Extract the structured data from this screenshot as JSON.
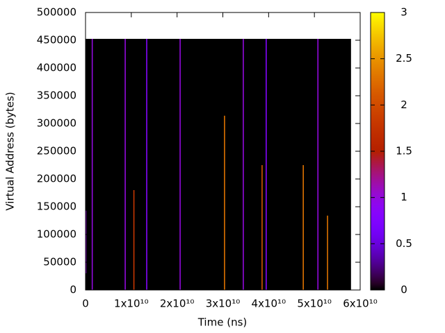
{
  "chart_data": {
    "type": "heatmap",
    "x_label": "Time (ns)",
    "y_label": "Virtual Address (bytes)",
    "xlim": [
      0,
      60000000000
    ],
    "xticks": [
      0,
      {
        "value": 10000000000,
        "label": "1x10¹⁰"
      },
      {
        "value": 20000000000,
        "label": "2x10¹⁰"
      },
      {
        "value": 30000000000,
        "label": "3x10¹⁰"
      },
      {
        "value": 40000000000,
        "label": "4x10¹⁰"
      },
      {
        "value": 50000000000,
        "label": "5x10¹⁰"
      },
      {
        "value": 60000000000,
        "label": "6x10¹⁰"
      }
    ],
    "ylim": [
      0,
      500000
    ],
    "yticks": [
      0,
      50000,
      100000,
      150000,
      200000,
      250000,
      300000,
      350000,
      400000,
      450000,
      500000
    ],
    "background": {
      "x": [
        0,
        58000000000
      ],
      "y": [
        0,
        452500
      ],
      "value": 0
    },
    "streaks": [
      {
        "x": 100000000,
        "y0": 30000,
        "y1": 143000,
        "value": 1
      },
      {
        "x": 1500000000,
        "y0": 0,
        "y1": 452500,
        "value": 1
      },
      {
        "x": 8700000000,
        "y0": 0,
        "y1": 452500,
        "value": 1
      },
      {
        "x": 10600000000,
        "y0": 0,
        "y1": 180000,
        "value": 1.8
      },
      {
        "x": 13400000000,
        "y0": 0,
        "y1": 452500,
        "value": 0.8
      },
      {
        "x": 20700000000,
        "y0": 0,
        "y1": 452500,
        "value": 1
      },
      {
        "x": 30400000000,
        "y0": 0,
        "y1": 314000,
        "value": 2.3
      },
      {
        "x": 34500000000,
        "y0": 0,
        "y1": 452500,
        "value": 1
      },
      {
        "x": 38600000000,
        "y0": 0,
        "y1": 225000,
        "value": 2.1
      },
      {
        "x": 39500000000,
        "y0": 0,
        "y1": 452500,
        "value": 0.8
      },
      {
        "x": 47600000000,
        "y0": 0,
        "y1": 225000,
        "value": 2.3
      },
      {
        "x": 50800000000,
        "y0": 0,
        "y1": 452500,
        "value": 1
      },
      {
        "x": 52900000000,
        "y0": 0,
        "y1": 134000,
        "value": 2.3
      }
    ],
    "colorbar": {
      "lim": [
        0,
        3
      ],
      "ticks": [
        0,
        0.5,
        1,
        1.5,
        2,
        2.5,
        3
      ]
    }
  }
}
